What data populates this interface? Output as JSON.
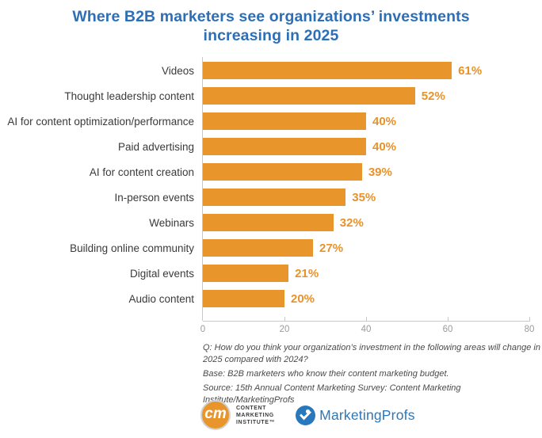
{
  "title_lines": [
    "Where B2B marketers see organizations’ investments",
    "increasing in 2025"
  ],
  "chart_data": {
    "type": "bar",
    "orientation": "horizontal",
    "title": "Where B2B marketers see organizations’ investments increasing in 2025",
    "categories": [
      "Videos",
      "Thought leadership content",
      "AI for content optimization/performance",
      "Paid advertising",
      "AI for content creation",
      "In-person events",
      "Webinars",
      "Building online community",
      "Digital events",
      "Audio content"
    ],
    "values": [
      61,
      52,
      40,
      40,
      39,
      35,
      32,
      27,
      21,
      20
    ],
    "value_labels": [
      "61%",
      "52%",
      "40%",
      "40%",
      "39%",
      "35%",
      "32%",
      "27%",
      "21%",
      "20%"
    ],
    "xlim": [
      0,
      80
    ],
    "x_ticks": [
      0,
      20,
      40,
      60,
      80
    ],
    "grid": false,
    "legend": "none",
    "bar_color": "#e8962b"
  },
  "footnotes": {
    "question": "Q: How do you think your organization’s investment in the following areas will change in 2025 compared with 2024?",
    "base": "Base: B2B marketers who know their content marketing budget.",
    "source": "Source: 15th Annual Content Marketing Survey: Content Marketing Institute/MarketingProfs"
  },
  "logos": {
    "cmi": {
      "monogram": "cm",
      "lines": [
        "CONTENT",
        "MARKETING",
        "INSTITUTE™"
      ]
    },
    "marketingprofs": {
      "text": "MarketingProfs"
    }
  },
  "colors": {
    "title_blue": "#2d6fb7",
    "bar_orange": "#e8962b",
    "value_orange": "#e8922a",
    "axis_gray": "#c9c9c9",
    "tick_text_gray": "#9a9a9a",
    "label_text": "#3a3a3a",
    "footnote_text": "#4a4a4a",
    "marketingprofs_blue": "#2878be"
  }
}
